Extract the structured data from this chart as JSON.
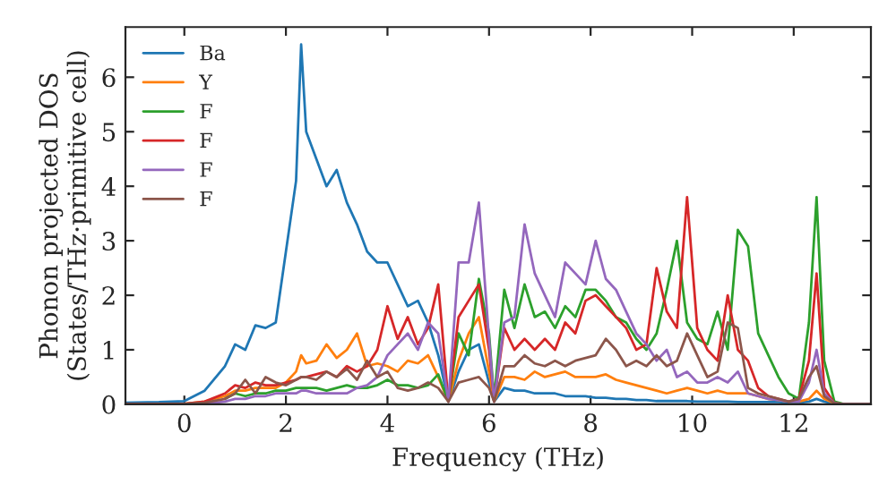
{
  "chart_data": {
    "type": "line",
    "xlabel": "Frequency (THz)",
    "ylabel": "Phonon projected DOS\n(States/THz·primitive cell)",
    "x": [
      -1.16,
      -0.5,
      0,
      0.4,
      0.8,
      1.0,
      1.2,
      1.4,
      1.6,
      1.8,
      2.0,
      2.2,
      2.3,
      2.4,
      2.6,
      2.8,
      3.0,
      3.2,
      3.4,
      3.6,
      3.8,
      4.0,
      4.2,
      4.4,
      4.6,
      4.8,
      5.0,
      5.2,
      5.4,
      5.6,
      5.8,
      6.0,
      6.1,
      6.3,
      6.5,
      6.7,
      6.9,
      7.1,
      7.3,
      7.5,
      7.7,
      7.9,
      8.1,
      8.3,
      8.5,
      8.7,
      8.9,
      9.1,
      9.3,
      9.5,
      9.7,
      9.9,
      10.1,
      10.3,
      10.5,
      10.7,
      10.9,
      11.1,
      11.3,
      11.5,
      11.7,
      11.9,
      12.1,
      12.3,
      12.45,
      12.6,
      12.8,
      13.0,
      13.52
    ],
    "series": [
      {
        "name": "Ba",
        "color": "#1f77b4",
        "values": [
          0.03,
          0.04,
          0.06,
          0.25,
          0.7,
          1.1,
          1.0,
          1.45,
          1.4,
          1.5,
          2.8,
          4.1,
          6.6,
          5.0,
          4.5,
          4.0,
          4.3,
          3.7,
          3.3,
          2.8,
          2.6,
          2.6,
          2.2,
          1.8,
          1.9,
          1.5,
          0.9,
          0.05,
          0.6,
          1.0,
          1.1,
          0.4,
          0.05,
          0.3,
          0.25,
          0.25,
          0.2,
          0.2,
          0.2,
          0.15,
          0.15,
          0.15,
          0.12,
          0.12,
          0.1,
          0.1,
          0.08,
          0.08,
          0.06,
          0.06,
          0.06,
          0.06,
          0.05,
          0.05,
          0.05,
          0.05,
          0.04,
          0.04,
          0.04,
          0.04,
          0.04,
          0.03,
          0.03,
          0.05,
          0.1,
          0.05,
          0.01,
          0,
          0
        ]
      },
      {
        "name": "Y",
        "color": "#ff7f0e",
        "values": [
          0,
          0,
          0.01,
          0.05,
          0.15,
          0.25,
          0.25,
          0.3,
          0.3,
          0.3,
          0.4,
          0.6,
          0.9,
          0.75,
          0.8,
          1.1,
          0.85,
          1.0,
          1.3,
          0.7,
          0.75,
          0.7,
          0.6,
          0.8,
          0.75,
          0.9,
          0.5,
          0.05,
          0.8,
          1.3,
          1.6,
          0.6,
          0.05,
          0.5,
          0.5,
          0.45,
          0.6,
          0.5,
          0.55,
          0.6,
          0.5,
          0.5,
          0.5,
          0.55,
          0.45,
          0.4,
          0.35,
          0.3,
          0.25,
          0.2,
          0.25,
          0.3,
          0.25,
          0.2,
          0.25,
          0.2,
          0.2,
          0.2,
          0.15,
          0.1,
          0.08,
          0.05,
          0.05,
          0.1,
          0.25,
          0.1,
          0.02,
          0,
          0
        ]
      },
      {
        "name": "F",
        "color": "#2ca02c",
        "values": [
          null,
          null,
          null,
          null,
          0.1,
          0.2,
          0.15,
          0.2,
          0.2,
          0.25,
          0.25,
          0.3,
          0.3,
          0.3,
          0.3,
          0.25,
          0.3,
          0.35,
          0.3,
          0.3,
          0.35,
          0.45,
          0.35,
          0.35,
          0.3,
          0.35,
          0.55,
          0.05,
          1.3,
          0.9,
          2.3,
          1.3,
          0.1,
          2.1,
          1.4,
          2.2,
          1.6,
          1.7,
          1.4,
          1.8,
          1.6,
          2.1,
          2.1,
          1.9,
          1.6,
          1.5,
          1.2,
          1.0,
          1.3,
          2.1,
          3.0,
          1.5,
          1.2,
          1.1,
          1.7,
          1.0,
          3.2,
          2.9,
          1.3,
          0.9,
          0.5,
          0.2,
          0.1,
          1.5,
          3.8,
          0.8,
          0.05,
          0,
          0
        ]
      },
      {
        "name": "F",
        "color": "#d62728",
        "values": [
          0,
          0,
          0.01,
          0.05,
          0.2,
          0.35,
          0.3,
          0.4,
          0.35,
          0.35,
          0.4,
          0.45,
          0.5,
          0.5,
          0.55,
          0.6,
          0.5,
          0.7,
          0.6,
          0.7,
          1.0,
          1.8,
          1.2,
          1.6,
          1.1,
          1.4,
          2.2,
          0.05,
          1.6,
          1.9,
          2.2,
          1.0,
          0.05,
          1.4,
          1.0,
          1.2,
          1.0,
          1.2,
          1.0,
          1.5,
          1.3,
          1.9,
          2.0,
          1.8,
          1.6,
          1.4,
          1.0,
          1.1,
          2.5,
          1.7,
          1.4,
          3.8,
          1.4,
          1.0,
          0.8,
          2.0,
          1.0,
          0.8,
          0.3,
          0.15,
          0.1,
          0.05,
          0.1,
          0.8,
          2.4,
          0.3,
          0.02,
          0,
          0
        ]
      },
      {
        "name": "F",
        "color": "#9467bd",
        "values": [
          null,
          null,
          0,
          0.01,
          0.05,
          0.1,
          0.1,
          0.15,
          0.15,
          0.2,
          0.2,
          0.2,
          0.25,
          0.25,
          0.2,
          0.2,
          0.2,
          0.2,
          0.3,
          0.35,
          0.5,
          0.9,
          1.1,
          1.3,
          1.0,
          1.5,
          1.3,
          0.05,
          2.6,
          2.6,
          3.7,
          1.2,
          0.05,
          1.5,
          1.6,
          3.3,
          2.4,
          2.0,
          1.6,
          2.6,
          2.4,
          2.2,
          3.0,
          2.3,
          2.1,
          1.7,
          1.3,
          1.1,
          0.8,
          1.0,
          0.5,
          0.6,
          0.4,
          0.4,
          0.5,
          0.4,
          0.6,
          0.2,
          0.15,
          0.1,
          0.08,
          0.05,
          0.05,
          0.4,
          1.0,
          0.2,
          0.02,
          0,
          0
        ]
      },
      {
        "name": "F",
        "color": "#8c564b",
        "values": [
          0,
          0,
          0.01,
          0.03,
          0.1,
          0.2,
          0.45,
          0.2,
          0.5,
          0.4,
          0.35,
          0.45,
          0.5,
          0.5,
          0.45,
          0.6,
          0.5,
          0.65,
          0.45,
          0.8,
          0.5,
          0.6,
          0.3,
          0.25,
          0.3,
          0.4,
          0.3,
          0.05,
          0.4,
          0.45,
          0.5,
          0.3,
          0.05,
          0.7,
          0.7,
          0.9,
          0.75,
          0.7,
          0.8,
          0.7,
          0.8,
          0.85,
          0.9,
          1.2,
          1.0,
          0.7,
          0.8,
          0.7,
          0.9,
          0.7,
          0.8,
          1.3,
          0.9,
          0.5,
          0.6,
          1.5,
          1.4,
          0.3,
          0.2,
          0.15,
          0.1,
          0.05,
          0.1,
          0.5,
          0.7,
          0.15,
          0.02,
          0,
          0
        ]
      }
    ],
    "xlim": [
      -1.16,
      13.52
    ],
    "ylim": [
      0,
      6.92
    ],
    "xticks": [
      0,
      2,
      4,
      6,
      8,
      10,
      12
    ],
    "yticks": [
      0,
      1,
      2,
      3,
      4,
      5,
      6
    ],
    "grid": false,
    "legend": "top left",
    "line_style": "solid",
    "marker": "none"
  }
}
